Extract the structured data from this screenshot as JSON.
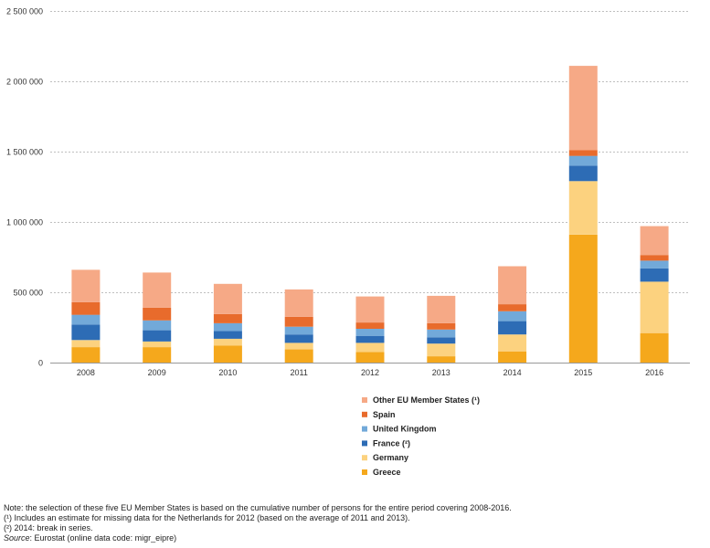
{
  "chart_data": {
    "type": "bar",
    "stacked": true,
    "categories": [
      "2008",
      "2009",
      "2010",
      "2011",
      "2012",
      "2013",
      "2014",
      "2015",
      "2016"
    ],
    "series": [
      {
        "name": "Greece",
        "color": "#f5a81c",
        "values": [
          110000,
          110000,
          120000,
          95000,
          75000,
          45000,
          80000,
          910000,
          210000
        ]
      },
      {
        "name": "Germany",
        "color": "#fcd27f",
        "values": [
          50000,
          40000,
          50000,
          45000,
          65000,
          90000,
          120000,
          380000,
          365000
        ]
      },
      {
        "name": "France (²)",
        "color": "#2d6cb5",
        "values": [
          110000,
          80000,
          55000,
          60000,
          50000,
          45000,
          95000,
          110000,
          95000
        ]
      },
      {
        "name": "United Kingdom",
        "color": "#72a9d9",
        "values": [
          70000,
          70000,
          55000,
          55000,
          50000,
          55000,
          70000,
          70000,
          55000
        ]
      },
      {
        "name": "Spain",
        "color": "#e86b2c",
        "values": [
          90000,
          90000,
          65000,
          70000,
          45000,
          45000,
          50000,
          40000,
          40000
        ]
      },
      {
        "name": "Other EU Member States (¹)",
        "color": "#f6a986",
        "values": [
          230000,
          250000,
          215000,
          195000,
          185000,
          195000,
          270000,
          600000,
          205000
        ]
      }
    ],
    "ylim": [
      0,
      2500000
    ],
    "yticks": [
      0,
      500000,
      1000000,
      1500000,
      2000000,
      2500000
    ],
    "ytick_labels": [
      "0",
      "500 000",
      "1 000 000",
      "1 500 000",
      "2 000 000",
      "2 500 000"
    ],
    "grid": true,
    "legend_position": "bottom-center"
  },
  "notes": {
    "note": "Note: the selection of these five EU Member States is based on the cumulative number of persons for the entire period covering 2008-2016.",
    "footnote1": "(¹) Includes an estimate for missing data for the Netherlands for 2012 (based on the average of 2011 and 2013).",
    "footnote2": "(²) 2014: break in series.",
    "source_label": "Source",
    "source_text": ": Eurostat (online data code: migr_eipre)"
  }
}
